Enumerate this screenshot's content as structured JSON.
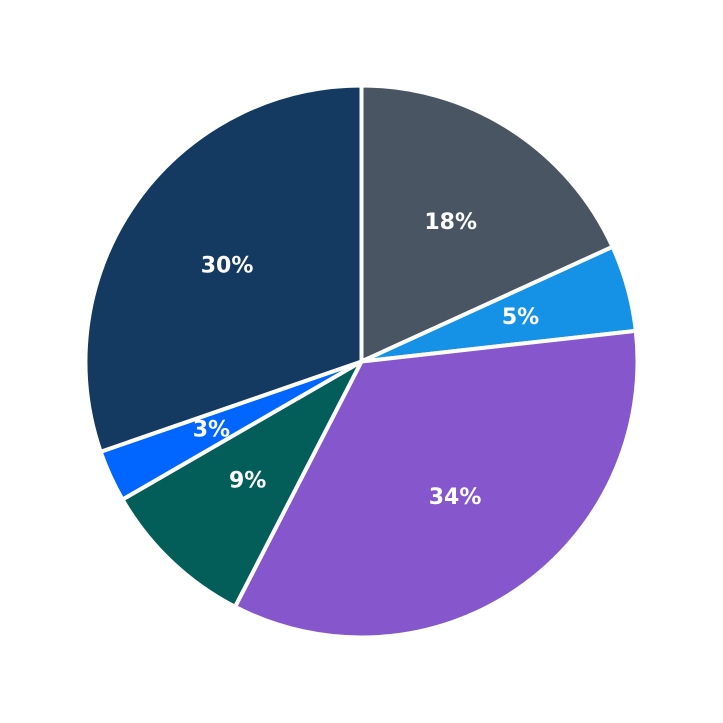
{
  "chart_data": {
    "type": "pie",
    "title": "",
    "legend": "none",
    "slices": [
      {
        "label": "18%",
        "value": 18,
        "color": "#4a5563"
      },
      {
        "label": "5%",
        "value": 5,
        "color": "#1591e6"
      },
      {
        "label": "34%",
        "value": 34,
        "color": "#8556cc"
      },
      {
        "label": "9%",
        "value": 9,
        "color": "#035e5a"
      },
      {
        "label": "3%",
        "value": 3,
        "color": "#0066ff"
      },
      {
        "label": "30%",
        "value": 30,
        "color": "#143a62"
      }
    ]
  }
}
